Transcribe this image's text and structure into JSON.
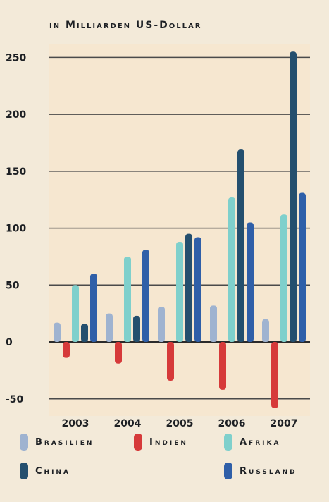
{
  "chart_data": {
    "type": "bar",
    "subtitle": "in Milliarden US-Dollar",
    "categories": [
      "2003",
      "2004",
      "2005",
      "2006",
      "2007"
    ],
    "series": [
      {
        "name": "Brasilien",
        "color": "#9fb3d0",
        "values": [
          17,
          25,
          31,
          32,
          20
        ]
      },
      {
        "name": "Indien",
        "color": "#d63a3a",
        "values": [
          -14,
          -19,
          -34,
          -42,
          -58
        ]
      },
      {
        "name": "Afrika",
        "color": "#7fd0cc",
        "values": [
          50,
          75,
          88,
          127,
          112
        ]
      },
      {
        "name": "China",
        "color": "#244f6e",
        "values": [
          16,
          23,
          95,
          169,
          255
        ]
      },
      {
        "name": "Russland",
        "color": "#2f5fa8",
        "values": [
          60,
          81,
          92,
          105,
          131
        ]
      }
    ],
    "yticks": [
      -50,
      0,
      50,
      100,
      150,
      200,
      250
    ],
    "ylim": [
      -65,
      262
    ],
    "grid": true,
    "legend_position": "bottom"
  }
}
